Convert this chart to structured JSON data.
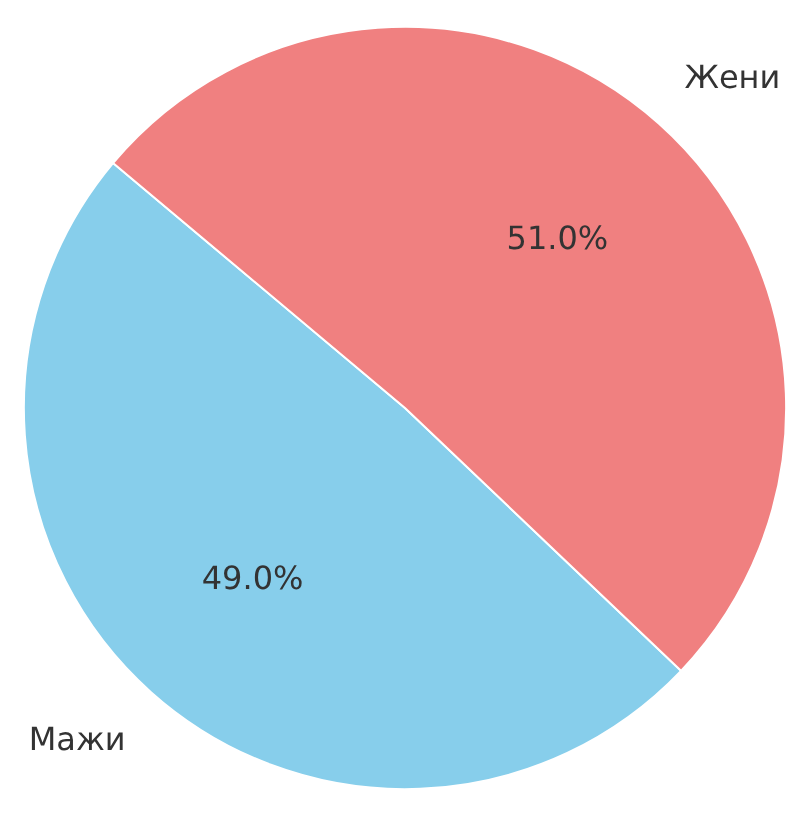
{
  "chart_data": {
    "type": "pie",
    "categories": [
      "Мажи",
      "Жени"
    ],
    "values": [
      49.0,
      51.0
    ],
    "colors": [
      "#87ceeb",
      "#f08080"
    ],
    "value_labels": [
      "49.0%",
      "51.0%"
    ]
  }
}
